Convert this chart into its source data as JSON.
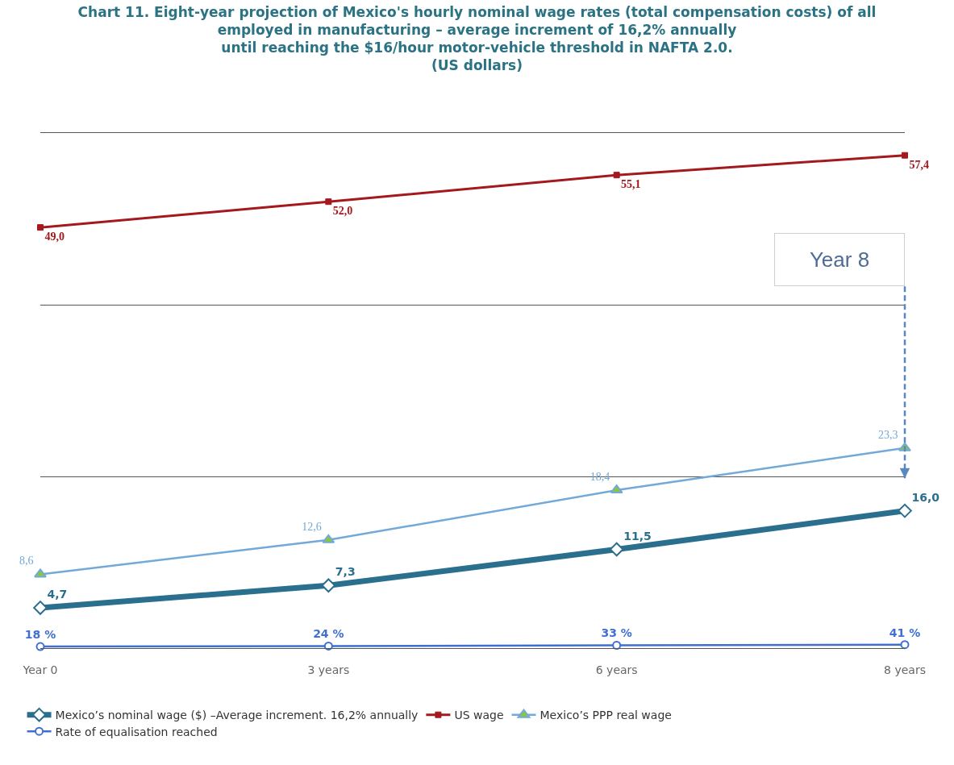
{
  "chart_data": {
    "type": "line",
    "title": "Chart 11. Eight-year projection of Mexico's hourly nominal wage rates (total compensation costs) of all\nemployed in manufacturing – average increment of 16,2% annually\nuntil reaching the $16/hour motor-vehicle threshold in NAFTA 2.0.\n(US dollars)",
    "categories": [
      "Year 0",
      "3 years",
      "6 years",
      "8 years"
    ],
    "series": [
      {
        "name": "Mexico’s nominal wage ($) –Average increment. 16,2% annually",
        "color": "#2b6f8e",
        "values": [
          4.7,
          7.3,
          11.5,
          16.0
        ],
        "value_labels": [
          "4,7",
          "7,3",
          "11,5",
          "16,0"
        ],
        "marker": "diamond",
        "colors": [
          "#ffffff",
          "#ffffff",
          "#ffffff",
          "#ffffff"
        ]
      },
      {
        "name": "US wage",
        "color": "#a3191e",
        "values": [
          49.0,
          52.0,
          55.1,
          57.4
        ],
        "value_labels": [
          "49,0",
          "52,0",
          "55,1",
          "57,4"
        ],
        "marker": "square"
      },
      {
        "name": "Mexico’s PPP real wage",
        "color": "#72a9d8",
        "values": [
          8.6,
          12.6,
          18.4,
          23.3
        ],
        "value_labels": [
          "8,6",
          "12,6",
          "18,4",
          "23,3"
        ],
        "marker": "triangle",
        "colors": [
          "#8cc63f",
          "#8cc63f",
          "#8cc63f",
          "#8cc63f"
        ]
      },
      {
        "name": "Rate of equalisation reached",
        "color": "#3f6fd1",
        "values": [
          0.18,
          0.24,
          0.33,
          0.41
        ],
        "value_labels": [
          "18 %",
          "24 %",
          "33 %",
          "41 %"
        ],
        "marker": "circle",
        "colors": [
          "#ffffff",
          "#ffffff",
          "#ffffff",
          "#ffffff"
        ]
      }
    ],
    "ylim": [
      0,
      60
    ],
    "yticks": [
      {
        "value": 20,
        "label": null
      },
      {
        "value": 40,
        "label": null
      }
    ],
    "grid": "y",
    "tick_labels": "x",
    "legend": "bottom left",
    "line_style": "solid",
    "annotations": [
      "Year 8"
    ]
  }
}
